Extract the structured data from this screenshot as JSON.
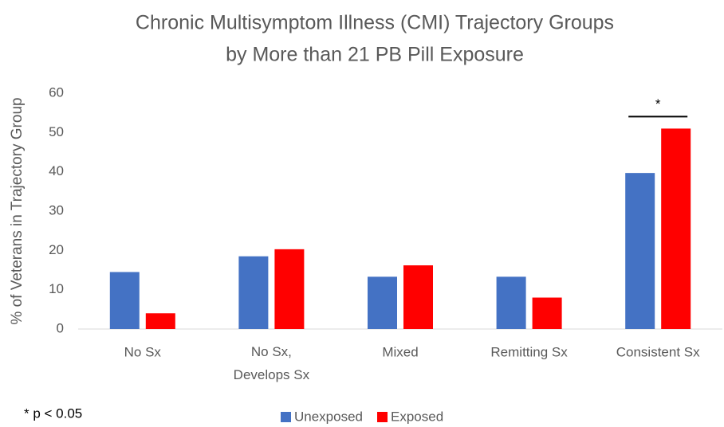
{
  "chart_data": {
    "type": "bar",
    "title": [
      "Chronic Multisymptom Illness (CMI) Trajectory Groups",
      "by More than 21 PB Pill Exposure"
    ],
    "y_label": "% of Veterans in Trajectory Group",
    "categories": [
      "No Sx",
      "No Sx, Develops Sx",
      "Mixed",
      "Remitting Sx",
      "Consistent Sx"
    ],
    "series": [
      {
        "name": "Unexposed",
        "color": "#4472c4",
        "values": [
          14.5,
          18.5,
          13.3,
          13.3,
          39.7
        ]
      },
      {
        "name": "Exposed",
        "color": "#ff0000",
        "values": [
          4,
          20.3,
          16.2,
          8,
          51
        ]
      }
    ],
    "ylim": [
      0,
      60
    ],
    "yticks": [
      0,
      10,
      20,
      30,
      40,
      50,
      60
    ],
    "grid": false,
    "significance_marker": "*",
    "footnote": "* p < 0.05",
    "legend": "bottom"
  }
}
